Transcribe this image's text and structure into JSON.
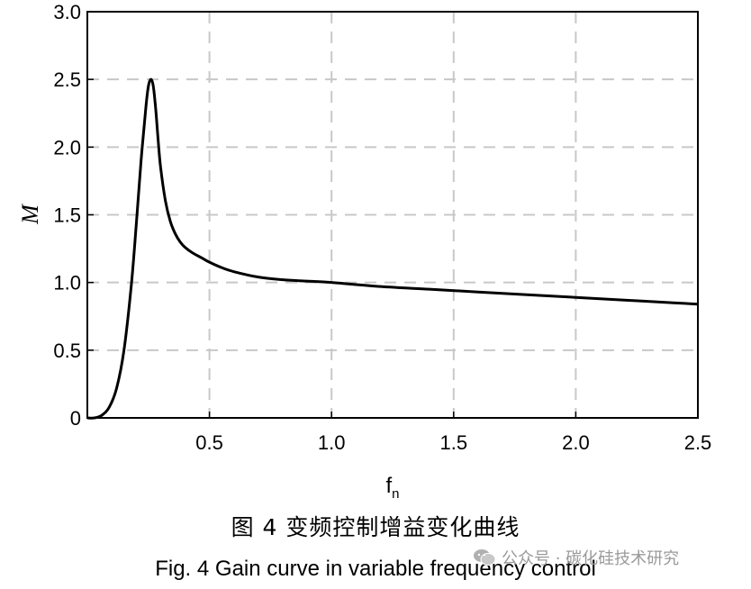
{
  "chart_data": {
    "type": "line",
    "xlabel": "f",
    "xlabel_subscript": "n",
    "ylabel": "M",
    "xlim": [
      0,
      2.5
    ],
    "ylim": [
      0,
      3.0
    ],
    "x_ticks": [
      "0.5",
      "1.0",
      "1.5",
      "2.0",
      "2.5"
    ],
    "x_tick_values": [
      0.5,
      1.0,
      1.5,
      2.0,
      2.5
    ],
    "y_ticks": [
      "0",
      "0.5",
      "1.0",
      "1.5",
      "2.0",
      "2.5",
      "3.0"
    ],
    "y_tick_values": [
      0,
      0.5,
      1.0,
      1.5,
      2.0,
      2.5,
      3.0
    ],
    "grid": true,
    "series": [
      {
        "x": [
          0.0,
          0.03,
          0.06,
          0.09,
          0.12,
          0.15,
          0.18,
          0.2,
          0.22,
          0.24,
          0.25,
          0.26,
          0.27,
          0.28,
          0.29,
          0.3,
          0.32,
          0.34,
          0.36,
          0.38,
          0.4,
          0.43,
          0.47,
          0.5,
          0.55,
          0.6,
          0.7,
          0.8,
          0.9,
          1.0,
          1.2,
          1.4,
          1.6,
          1.8,
          2.0,
          2.2,
          2.4,
          2.5
        ],
        "y": [
          0.0,
          0.0,
          0.02,
          0.08,
          0.22,
          0.5,
          0.98,
          1.42,
          1.9,
          2.3,
          2.45,
          2.5,
          2.45,
          2.28,
          2.05,
          1.85,
          1.6,
          1.45,
          1.36,
          1.3,
          1.26,
          1.22,
          1.18,
          1.15,
          1.11,
          1.08,
          1.04,
          1.02,
          1.01,
          1.0,
          0.97,
          0.95,
          0.93,
          0.91,
          0.89,
          0.87,
          0.85,
          0.84
        ]
      }
    ]
  },
  "caption": {
    "chinese": "图 4  变频控制增益变化曲线",
    "english": "Fig. 4  Gain curve in variable frequency control"
  },
  "watermark": {
    "text": "公众号 · 碳化硅技术研究",
    "icon": "wechat-icon"
  }
}
